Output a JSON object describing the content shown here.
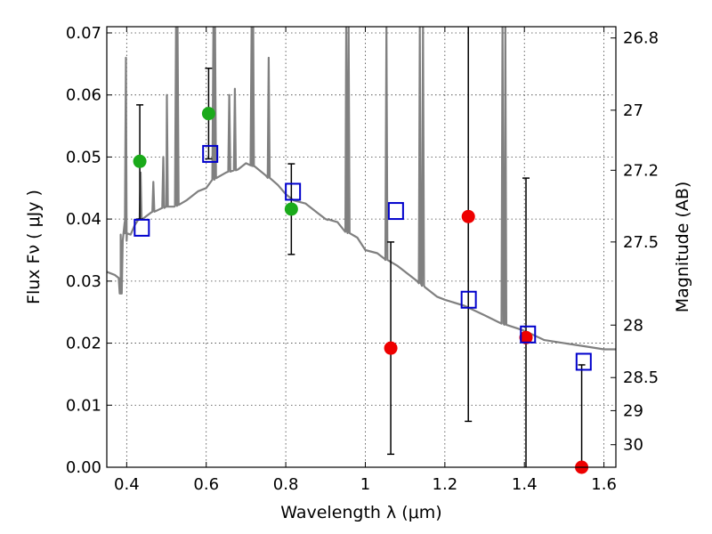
{
  "chart_data": {
    "type": "scatter",
    "xlabel": "Wavelength  λ (μm)",
    "ylabel": "Flux  Fν  ( μJy )",
    "ylabel_right": "Magnitude (AB)",
    "xlim": [
      0.35,
      1.63
    ],
    "ylim": [
      0.0,
      0.071
    ],
    "x_ticks": [
      0.4,
      0.6,
      0.8,
      1.0,
      1.2,
      1.4,
      1.6
    ],
    "x_tick_labels": [
      "0.4",
      "0.6",
      "0.8",
      "1",
      "1.2",
      "1.4",
      "1.6"
    ],
    "y_ticks": [
      0.0,
      0.01,
      0.02,
      0.03,
      0.04,
      0.05,
      0.06,
      0.07
    ],
    "y_tick_labels": [
      "0.00",
      "0.01",
      "0.02",
      "0.03",
      "0.04",
      "0.05",
      "0.06",
      "0.07"
    ],
    "right_ticks": [
      {
        "label": "26.8",
        "value": 26.8
      },
      {
        "label": "27",
        "value": 27.0
      },
      {
        "label": "27.2",
        "value": 27.2
      },
      {
        "label": "27.5",
        "value": 27.5
      },
      {
        "label": "28",
        "value": 28.0
      },
      {
        "label": "28.5",
        "value": 28.5
      },
      {
        "label": "29",
        "value": 29.0
      },
      {
        "label": "30",
        "value": 30.0
      }
    ],
    "grid": true,
    "colors": {
      "spectrum": "#808080",
      "detection": "#1aaa1a",
      "non_detection": "#ee0000",
      "model": "#0000cc",
      "errorbar": "#000000"
    },
    "spectrum": {
      "x": [
        0.35,
        0.37,
        0.38,
        0.385,
        0.39,
        0.395,
        0.4,
        0.41,
        0.42,
        0.43,
        0.44,
        0.45,
        0.46,
        0.48,
        0.5,
        0.52,
        0.55,
        0.58,
        0.6,
        0.62,
        0.65,
        0.68,
        0.7,
        0.72,
        0.75,
        0.78,
        0.8,
        0.82,
        0.85,
        0.88,
        0.9,
        0.93,
        0.95,
        0.98,
        1.0,
        1.03,
        1.05,
        1.08,
        1.1,
        1.13,
        1.15,
        1.18,
        1.2,
        1.25,
        1.3,
        1.35,
        1.4,
        1.45,
        1.5,
        1.55,
        1.6,
        1.63
      ],
      "y": [
        0.0315,
        0.031,
        0.0305,
        0.028,
        0.0365,
        0.0395,
        0.0365,
        0.0375,
        0.039,
        0.04,
        0.04,
        0.0405,
        0.041,
        0.0415,
        0.042,
        0.042,
        0.043,
        0.0445,
        0.045,
        0.0465,
        0.0475,
        0.048,
        0.049,
        0.0485,
        0.047,
        0.0455,
        0.044,
        0.043,
        0.0425,
        0.041,
        0.04,
        0.0395,
        0.038,
        0.037,
        0.035,
        0.0345,
        0.0335,
        0.0325,
        0.0315,
        0.03,
        0.029,
        0.0275,
        0.027,
        0.026,
        0.0245,
        0.023,
        0.022,
        0.0205,
        0.02,
        0.0195,
        0.019,
        0.019
      ]
    },
    "spectrum_lines": [
      {
        "x": 0.385,
        "peak": 0.0375
      },
      {
        "x": 0.398,
        "peak": 0.066
      },
      {
        "x": 0.435,
        "peak": 0.0475
      },
      {
        "x": 0.467,
        "peak": 0.046
      },
      {
        "x": 0.492,
        "peak": 0.05
      },
      {
        "x": 0.501,
        "peak": 0.06
      },
      {
        "x": 0.524,
        "peak": 0.071
      },
      {
        "x": 0.528,
        "peak": 0.071
      },
      {
        "x": 0.618,
        "peak": 0.071
      },
      {
        "x": 0.622,
        "peak": 0.071
      },
      {
        "x": 0.658,
        "peak": 0.06
      },
      {
        "x": 0.672,
        "peak": 0.061
      },
      {
        "x": 0.714,
        "peak": 0.071
      },
      {
        "x": 0.718,
        "peak": 0.071
      },
      {
        "x": 0.757,
        "peak": 0.066
      },
      {
        "x": 0.908,
        "peak": 0.04
      },
      {
        "x": 0.952,
        "peak": 0.071
      },
      {
        "x": 0.958,
        "peak": 0.071
      },
      {
        "x": 1.053,
        "peak": 0.071
      },
      {
        "x": 1.137,
        "peak": 0.071
      },
      {
        "x": 1.145,
        "peak": 0.071
      },
      {
        "x": 1.345,
        "peak": 0.071
      },
      {
        "x": 1.352,
        "peak": 0.071
      }
    ],
    "detections": [
      {
        "x": 0.433,
        "y": 0.0493
      },
      {
        "x": 0.606,
        "y": 0.057
      },
      {
        "x": 0.814,
        "y": 0.0416
      }
    ],
    "non_detections": [
      {
        "x": 1.064,
        "y": 0.0192
      },
      {
        "x": 1.259,
        "y": 0.0404
      },
      {
        "x": 1.404,
        "y": 0.0209
      },
      {
        "x": 1.544,
        "y": 0.0
      }
    ],
    "errorbars": [
      {
        "x": 0.433,
        "lo": 0.04,
        "hi": 0.0584
      },
      {
        "x": 0.606,
        "lo": 0.0497,
        "hi": 0.0643
      },
      {
        "x": 0.814,
        "lo": 0.0343,
        "hi": 0.0489
      },
      {
        "x": 1.064,
        "lo": 0.0021,
        "hi": 0.0363
      },
      {
        "x": 1.259,
        "lo": 0.0074,
        "hi": 0.0734
      },
      {
        "x": 1.404,
        "lo": -0.0001,
        "hi": 0.0466
      },
      {
        "x": 1.544,
        "lo": -0.0001,
        "hi": 0.0165
      }
    ],
    "model_points": [
      {
        "x": 0.438,
        "y": 0.0386
      },
      {
        "x": 0.61,
        "y": 0.0505
      },
      {
        "x": 0.818,
        "y": 0.0444
      },
      {
        "x": 1.077,
        "y": 0.0413
      },
      {
        "x": 1.26,
        "y": 0.027
      },
      {
        "x": 1.409,
        "y": 0.0214
      },
      {
        "x": 1.549,
        "y": 0.017
      }
    ]
  }
}
